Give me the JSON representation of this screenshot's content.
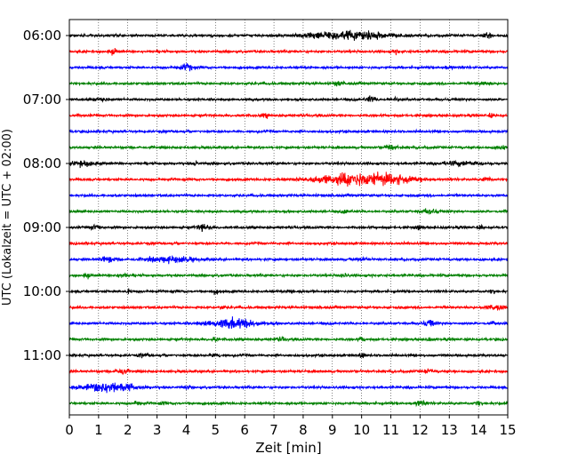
{
  "chart_data": {
    "type": "line",
    "title": "",
    "xlabel": "Zeit  [min]",
    "ylabel": "UTC (Lokalzeit = UTC + 02:00)",
    "xlim": [
      0,
      15
    ],
    "x_ticks": [
      "0",
      "1",
      "2",
      "3",
      "4",
      "5",
      "6",
      "7",
      "8",
      "9",
      "10",
      "11",
      "12",
      "13",
      "14",
      "15"
    ],
    "y_ticks": [
      "06:00",
      "07:00",
      "08:00",
      "09:00",
      "10:00",
      "11:00"
    ],
    "grid": "vertical dotted at each minute",
    "trace_interval_min": 15,
    "color_cycle": [
      "#000000",
      "#ff0000",
      "#0000ff",
      "#008000"
    ],
    "series": [
      {
        "start": "06:00",
        "color": "#000000",
        "events": [
          [
            9.2,
            4.5,
            1.1
          ],
          [
            10.2,
            3.5,
            0.9
          ],
          [
            14.3,
            4,
            0.15
          ]
        ]
      },
      {
        "start": "06:15",
        "color": "#ff0000",
        "events": [
          [
            1.5,
            3,
            0.15
          ],
          [
            11.2,
            2.5,
            0.15
          ]
        ]
      },
      {
        "start": "06:30",
        "color": "#0000ff",
        "events": [
          [
            4.0,
            4,
            0.25
          ],
          [
            13.0,
            2.5,
            0.15
          ]
        ]
      },
      {
        "start": "06:45",
        "color": "#008000",
        "events": [
          [
            9.2,
            3,
            0.15
          ],
          [
            14.2,
            2.5,
            0.2
          ]
        ]
      },
      {
        "start": "07:00",
        "color": "#000000",
        "events": [
          [
            1.1,
            3,
            0.2
          ],
          [
            10.3,
            4,
            0.15
          ],
          [
            11.1,
            2.5,
            0.15
          ]
        ]
      },
      {
        "start": "07:15",
        "color": "#ff0000",
        "events": [
          [
            6.7,
            3,
            0.1
          ],
          [
            14.4,
            2.5,
            0.1
          ]
        ]
      },
      {
        "start": "07:30",
        "color": "#0000ff",
        "events": []
      },
      {
        "start": "07:45",
        "color": "#008000",
        "events": [
          [
            11.0,
            3.5,
            0.2
          ],
          [
            14.8,
            3,
            0.15
          ]
        ]
      },
      {
        "start": "08:00",
        "color": "#000000",
        "events": [
          [
            0.5,
            3.5,
            0.4
          ],
          [
            4.3,
            3,
            0.1
          ],
          [
            13.5,
            3,
            0.6
          ]
        ]
      },
      {
        "start": "08:15",
        "color": "#ff0000",
        "events": [
          [
            9.7,
            6,
            1.4
          ],
          [
            10.8,
            4,
            1.0
          ],
          [
            14.3,
            2.5,
            0.15
          ]
        ]
      },
      {
        "start": "08:30",
        "color": "#0000ff",
        "events": []
      },
      {
        "start": "08:45",
        "color": "#008000",
        "events": [
          [
            9.5,
            2.5,
            0.15
          ],
          [
            12.3,
            3,
            0.3
          ]
        ]
      },
      {
        "start": "09:00",
        "color": "#000000",
        "events": [
          [
            0.9,
            3,
            0.2
          ],
          [
            4.6,
            4,
            0.2
          ],
          [
            12.0,
            2.5,
            0.1
          ],
          [
            14.1,
            2.5,
            0.1
          ]
        ]
      },
      {
        "start": "09:15",
        "color": "#ff0000",
        "events": []
      },
      {
        "start": "09:30",
        "color": "#0000ff",
        "events": [
          [
            1.3,
            3.5,
            0.3
          ],
          [
            3.5,
            3.5,
            0.8
          ],
          [
            10.0,
            2.5,
            0.2
          ]
        ]
      },
      {
        "start": "09:45",
        "color": "#008000",
        "events": [
          [
            0.6,
            3,
            0.1
          ],
          [
            1.8,
            2.5,
            0.2
          ],
          [
            9.4,
            2.5,
            0.1
          ]
        ]
      },
      {
        "start": "10:00",
        "color": "#000000",
        "events": [
          [
            2.0,
            2.5,
            0.1
          ],
          [
            5.0,
            2.5,
            0.1
          ],
          [
            7.6,
            3,
            0.1
          ],
          [
            14.5,
            2.5,
            0.1
          ]
        ]
      },
      {
        "start": "10:15",
        "color": "#ff0000",
        "events": [
          [
            5.2,
            2.5,
            0.1
          ],
          [
            14.6,
            3,
            0.3
          ]
        ]
      },
      {
        "start": "10:30",
        "color": "#0000ff",
        "events": [
          [
            5.6,
            5.5,
            0.8
          ],
          [
            12.3,
            4,
            0.2
          ],
          [
            14.5,
            2.5,
            0.1
          ]
        ]
      },
      {
        "start": "10:45",
        "color": "#008000",
        "events": [
          [
            5.0,
            3,
            0.1
          ],
          [
            7.2,
            2.5,
            0.2
          ],
          [
            10.0,
            2.5,
            0.1
          ],
          [
            12.3,
            2.5,
            0.1
          ]
        ]
      },
      {
        "start": "11:00",
        "color": "#000000",
        "events": [
          [
            2.5,
            2.5,
            0.2
          ],
          [
            5.0,
            2.5,
            0.2
          ],
          [
            10.0,
            2.5,
            0.15
          ]
        ]
      },
      {
        "start": "11:15",
        "color": "#ff0000",
        "events": [
          [
            1.8,
            4,
            0.2
          ],
          [
            12.3,
            2.5,
            0.15
          ]
        ]
      },
      {
        "start": "11:30",
        "color": "#0000ff",
        "events": [
          [
            1.4,
            6,
            0.8
          ],
          [
            4.0,
            2.5,
            0.1
          ]
        ]
      },
      {
        "start": "11:45",
        "color": "#008000",
        "events": [
          [
            2.3,
            2.5,
            0.15
          ],
          [
            3.2,
            2.5,
            0.1
          ],
          [
            12.0,
            3.5,
            0.2
          ],
          [
            14.0,
            2.5,
            0.15
          ]
        ]
      }
    ]
  }
}
